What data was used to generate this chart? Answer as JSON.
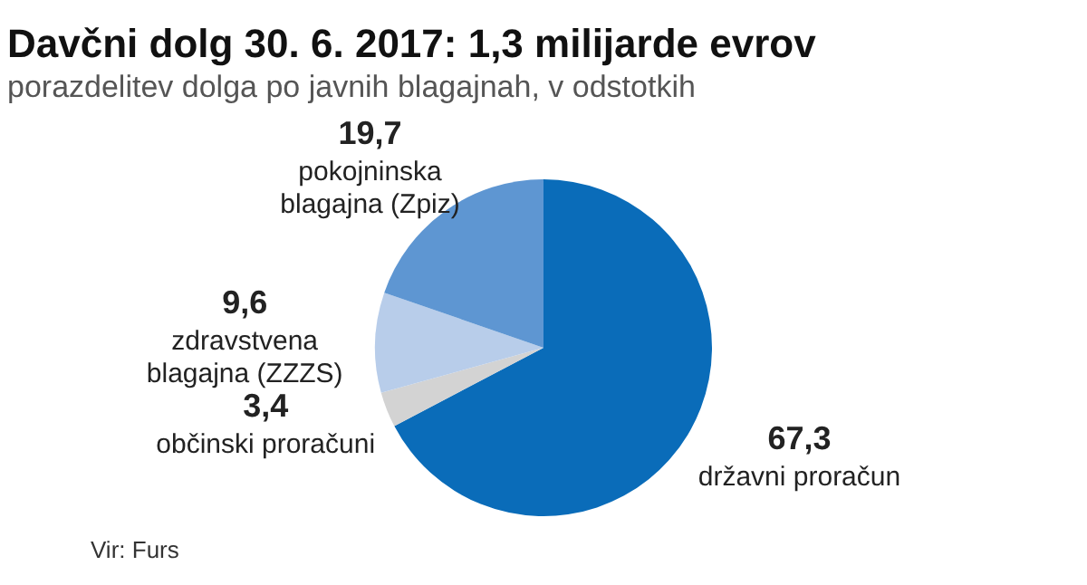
{
  "chart_data": {
    "type": "pie",
    "title": "Davčni dolg 30. 6. 2017: 1,3 milijarde evrov",
    "subtitle": "porazdelitev dolga po javnih blagajnah, v odstotkih",
    "categories": [
      "državni proračun",
      "občinski proračuni",
      "zdravstvena blagajna  (ZZZS)",
      "pokojninska blagajna (Zpiz)"
    ],
    "values": [
      67.3,
      3.4,
      9.6,
      19.7
    ],
    "colors": [
      "#0a6cb9",
      "#d3d3d3",
      "#b8cdea",
      "#5e96d2"
    ],
    "value_labels": [
      "67,3",
      "3,4",
      "9,6",
      "19,7"
    ],
    "annotations": [
      "Vir: Furs"
    ]
  }
}
